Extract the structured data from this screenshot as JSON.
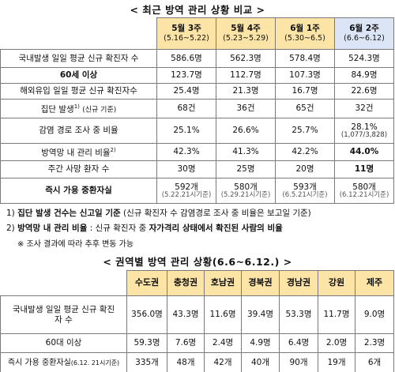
{
  "table1": {
    "title": "< 최근 방역 관리 상황 비교 >",
    "columns": [
      {
        "week": "5월 3주",
        "period": "(5.16~5.22)"
      },
      {
        "week": "5월 4주",
        "period": "(5.23~5.29)"
      },
      {
        "week": "6월 1주",
        "period": "(5.30~6.5)"
      },
      {
        "week": "6월 2주",
        "period": "(6.6~6.12)"
      }
    ],
    "rows": [
      {
        "label": "국내발생 일일 평균 신규 확진자 수",
        "values": [
          "586.6명",
          "562.3명",
          "578.4명",
          "524.3명"
        ]
      },
      {
        "label": "60세 이상",
        "values": [
          "123.7명",
          "112.7명",
          "107.3명",
          "84.9명"
        ]
      },
      {
        "label": "해외유입 일일 평균 신규 확진자수",
        "values": [
          "25.4명",
          "21.3명",
          "16.7명",
          "22.6명"
        ]
      },
      {
        "label": "집단 발생",
        "label_sup": "1)",
        "label_sub": "(신규 기준)",
        "values": [
          "68건",
          "36건",
          "65건",
          "32건"
        ]
      },
      {
        "label": "감염 경로 조사 중 비율",
        "values": [
          "25.1%",
          "26.6%",
          "25.7%",
          "28.1%"
        ],
        "last_note": "(1,077/3,828)"
      },
      {
        "label": "방역망 내 관리 비율",
        "label_sup": "2)",
        "values": [
          "42.3%",
          "41.3%",
          "42.2%",
          "44.0%"
        ]
      },
      {
        "label": "주간 사망 환자 수",
        "values": [
          "30명",
          "25명",
          "20명",
          "11명"
        ]
      },
      {
        "label": "즉시 가용 중환자실",
        "values": [
          "592개",
          "580개",
          "593개",
          "580개"
        ],
        "notes": [
          "(5.22.21시기준)",
          "(5.29.21시기준)",
          "(6.5.21시기준)",
          "(6.12.21시기준)"
        ]
      }
    ]
  },
  "notes": {
    "n1_num": "1)",
    "n1_bold": "집단 발생 건수는 신고일 기준",
    "n1_rest": "(신규 확진자 수 감염경로 조사 중 비율은 보고일 기준)",
    "n2_num": "2)",
    "n2_bold": "방역망 내 관리 비율",
    "n2_mid": ": 신규 확진자 중",
    "n2_bold2": "자가격리 상태에서 확진된 사람의 비율",
    "n3": "※ 조사 결과에 따라 추후 변동 가능"
  },
  "table2": {
    "title": "< 권역별 방역 관리 상황(6.6~6.12.) >",
    "columns": [
      "수도권",
      "충청권",
      "호남권",
      "경북권",
      "경남권",
      "강원",
      "제주"
    ],
    "rows": [
      {
        "label": "국내발생 일일 평균 신규 확진자 수",
        "values": [
          "356.0명",
          "43.3명",
          "11.6명",
          "39.4명",
          "53.3명",
          "11.7명",
          "9.0명"
        ]
      },
      {
        "label": "60대 이상",
        "values": [
          "59.3명",
          "7.6명",
          "2.4명",
          "4.9명",
          "6.4명",
          "2.0명",
          "2.3명"
        ]
      },
      {
        "label": "즉시 가용 중환자실",
        "label_sub": "(6.12. 21시기준)",
        "values": [
          "335개",
          "48개",
          "42개",
          "40개",
          "90개",
          "19개",
          "6개"
        ]
      }
    ]
  }
}
